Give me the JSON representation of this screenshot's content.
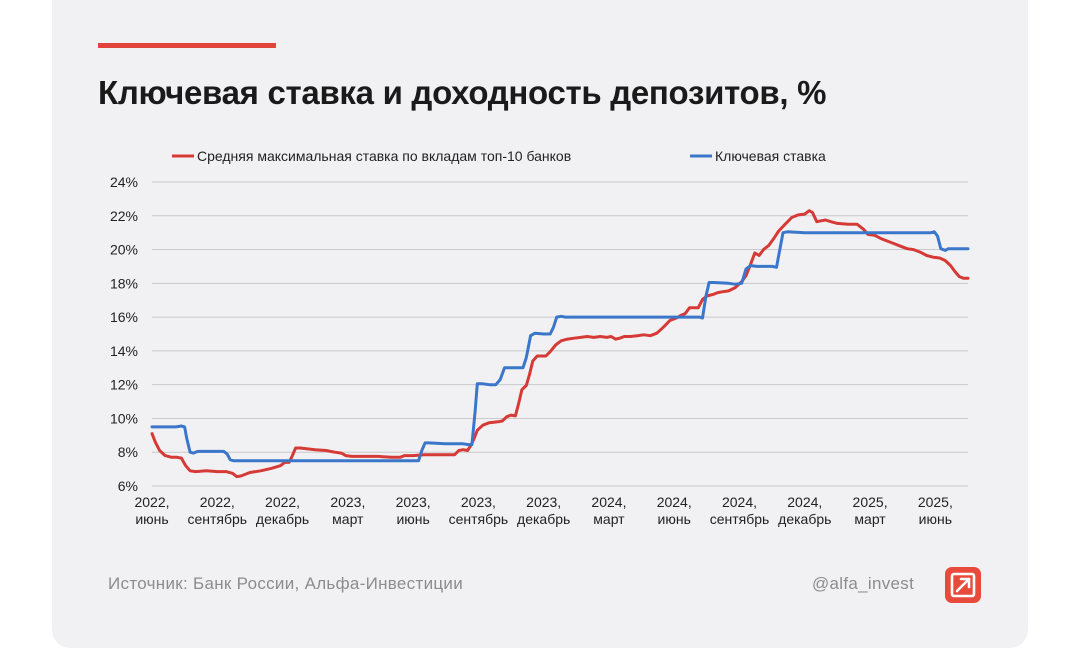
{
  "header": {
    "title": "Ключевая ставка и доходность депозитов, %",
    "accent_color": "#e0463c"
  },
  "footer": {
    "source": "Источник: Банк России, Альфа-Инвестиции",
    "handle": "@alfa_invest",
    "logo_icon": "arrow-up-right-icon"
  },
  "chart_data": {
    "type": "line",
    "title": "Ключевая ставка и доходность депозитов, %",
    "xlabel": "",
    "ylabel": "",
    "ylim": [
      6,
      24
    ],
    "yticks": [
      6,
      8,
      10,
      12,
      14,
      16,
      18,
      20,
      22,
      24
    ],
    "ytick_labels": [
      "6%",
      "8%",
      "10%",
      "12%",
      "14%",
      "16%",
      "18%",
      "20%",
      "22%",
      "24%"
    ],
    "xlim": [
      0,
      37
    ],
    "xticks": [
      {
        "x": 0,
        "line1": "2022,",
        "line2": "июнь"
      },
      {
        "x": 3,
        "line1": "2022,",
        "line2": "сентябрь"
      },
      {
        "x": 6,
        "line1": "2022,",
        "line2": "декабрь"
      },
      {
        "x": 9,
        "line1": "2023,",
        "line2": "март"
      },
      {
        "x": 12,
        "line1": "2023,",
        "line2": "июнь"
      },
      {
        "x": 15,
        "line1": "2023,",
        "line2": "сентябрь"
      },
      {
        "x": 18,
        "line1": "2023,",
        "line2": "декабрь"
      },
      {
        "x": 21,
        "line1": "2024,",
        "line2": "март"
      },
      {
        "x": 24,
        "line1": "2024,",
        "line2": "июнь"
      },
      {
        "x": 27,
        "line1": "2024,",
        "line2": "сентябрь"
      },
      {
        "x": 30,
        "line1": "2024,",
        "line2": "декабрь"
      },
      {
        "x": 33,
        "line1": "2025,",
        "line2": "март"
      },
      {
        "x": 36,
        "line1": "2025,",
        "line2": "июнь"
      }
    ],
    "grid": true,
    "legend_position": "top",
    "series": [
      {
        "name": "Средняя максимальная ставка по вкладам топ-10 банков",
        "color": "#d63a36",
        "points": [
          [
            0,
            9.1
          ],
          [
            0.15,
            8.6
          ],
          [
            0.35,
            8.1
          ],
          [
            0.6,
            7.8
          ],
          [
            0.9,
            7.7
          ],
          [
            1.15,
            7.7
          ],
          [
            1.35,
            7.65
          ],
          [
            1.55,
            7.2
          ],
          [
            1.75,
            6.9
          ],
          [
            2.0,
            6.85
          ],
          [
            2.5,
            6.9
          ],
          [
            3.0,
            6.85
          ],
          [
            3.4,
            6.85
          ],
          [
            3.7,
            6.75
          ],
          [
            3.9,
            6.55
          ],
          [
            4.1,
            6.6
          ],
          [
            4.5,
            6.8
          ],
          [
            5.0,
            6.9
          ],
          [
            5.5,
            7.05
          ],
          [
            5.9,
            7.2
          ],
          [
            6.1,
            7.4
          ],
          [
            6.3,
            7.4
          ],
          [
            6.45,
            7.8
          ],
          [
            6.6,
            8.25
          ],
          [
            6.8,
            8.25
          ],
          [
            7.1,
            8.2
          ],
          [
            7.5,
            8.15
          ],
          [
            8.0,
            8.1
          ],
          [
            8.4,
            8.0
          ],
          [
            8.7,
            7.95
          ],
          [
            8.9,
            7.8
          ],
          [
            9.2,
            7.75
          ],
          [
            9.8,
            7.75
          ],
          [
            10.4,
            7.75
          ],
          [
            11.0,
            7.7
          ],
          [
            11.4,
            7.7
          ],
          [
            11.6,
            7.8
          ],
          [
            12.0,
            7.8
          ],
          [
            12.5,
            7.85
          ],
          [
            13.0,
            7.85
          ],
          [
            13.6,
            7.85
          ],
          [
            13.9,
            7.85
          ],
          [
            14.1,
            8.1
          ],
          [
            14.3,
            8.15
          ],
          [
            14.5,
            8.1
          ],
          [
            14.65,
            8.4
          ],
          [
            14.8,
            8.8
          ],
          [
            14.95,
            9.3
          ],
          [
            15.2,
            9.6
          ],
          [
            15.5,
            9.75
          ],
          [
            15.9,
            9.8
          ],
          [
            16.1,
            9.85
          ],
          [
            16.3,
            10.1
          ],
          [
            16.5,
            10.2
          ],
          [
            16.7,
            10.15
          ],
          [
            16.85,
            10.9
          ],
          [
            17.0,
            11.7
          ],
          [
            17.2,
            11.95
          ],
          [
            17.35,
            12.6
          ],
          [
            17.5,
            13.4
          ],
          [
            17.7,
            13.7
          ],
          [
            17.9,
            13.7
          ],
          [
            18.1,
            13.7
          ],
          [
            18.3,
            13.95
          ],
          [
            18.55,
            14.35
          ],
          [
            18.8,
            14.6
          ],
          [
            19.1,
            14.7
          ],
          [
            19.4,
            14.75
          ],
          [
            19.7,
            14.8
          ],
          [
            20.0,
            14.85
          ],
          [
            20.3,
            14.8
          ],
          [
            20.6,
            14.85
          ],
          [
            20.9,
            14.8
          ],
          [
            21.1,
            14.85
          ],
          [
            21.3,
            14.7
          ],
          [
            21.5,
            14.75
          ],
          [
            21.7,
            14.85
          ],
          [
            22.0,
            14.85
          ],
          [
            22.3,
            14.9
          ],
          [
            22.6,
            14.95
          ],
          [
            22.9,
            14.9
          ],
          [
            23.2,
            15.05
          ],
          [
            23.5,
            15.4
          ],
          [
            23.8,
            15.8
          ],
          [
            24.1,
            15.95
          ],
          [
            24.3,
            16.1
          ],
          [
            24.5,
            16.2
          ],
          [
            24.7,
            16.55
          ],
          [
            24.9,
            16.55
          ],
          [
            25.1,
            16.55
          ],
          [
            25.3,
            17.05
          ],
          [
            25.5,
            17.25
          ],
          [
            25.8,
            17.35
          ],
          [
            26.0,
            17.45
          ],
          [
            26.2,
            17.5
          ],
          [
            26.5,
            17.55
          ],
          [
            26.8,
            17.75
          ],
          [
            27.1,
            18.1
          ],
          [
            27.3,
            18.45
          ],
          [
            27.5,
            19.1
          ],
          [
            27.7,
            19.8
          ],
          [
            27.9,
            19.65
          ],
          [
            28.1,
            20.0
          ],
          [
            28.35,
            20.25
          ],
          [
            28.6,
            20.7
          ],
          [
            28.8,
            21.1
          ],
          [
            29.1,
            21.5
          ],
          [
            29.4,
            21.9
          ],
          [
            29.7,
            22.05
          ],
          [
            30.0,
            22.1
          ],
          [
            30.2,
            22.3
          ],
          [
            30.35,
            22.2
          ],
          [
            30.55,
            21.65
          ],
          [
            30.75,
            21.7
          ],
          [
            30.95,
            21.75
          ],
          [
            31.2,
            21.65
          ],
          [
            31.5,
            21.55
          ],
          [
            32.0,
            21.5
          ],
          [
            32.4,
            21.5
          ],
          [
            32.7,
            21.2
          ],
          [
            32.9,
            20.9
          ],
          [
            33.2,
            20.85
          ],
          [
            33.5,
            20.65
          ],
          [
            33.8,
            20.5
          ],
          [
            34.1,
            20.35
          ],
          [
            34.4,
            20.2
          ],
          [
            34.7,
            20.05
          ],
          [
            35.0,
            20.0
          ],
          [
            35.3,
            19.85
          ],
          [
            35.6,
            19.65
          ],
          [
            35.9,
            19.55
          ],
          [
            36.2,
            19.5
          ],
          [
            36.45,
            19.35
          ],
          [
            36.7,
            19.05
          ],
          [
            36.9,
            18.7
          ],
          [
            37.1,
            18.4
          ],
          [
            37.3,
            18.3
          ],
          [
            37.5,
            18.3
          ]
        ]
      },
      {
        "name": "Ключевая ставка",
        "color": "#3a76c9",
        "points": [
          [
            0,
            9.5
          ],
          [
            0.6,
            9.5
          ],
          [
            1.1,
            9.5
          ],
          [
            1.35,
            9.55
          ],
          [
            1.5,
            9.5
          ],
          [
            1.6,
            8.8
          ],
          [
            1.75,
            8.0
          ],
          [
            1.9,
            7.95
          ],
          [
            2.1,
            8.05
          ],
          [
            3.0,
            8.05
          ],
          [
            3.3,
            8.05
          ],
          [
            3.45,
            7.9
          ],
          [
            3.6,
            7.55
          ],
          [
            3.75,
            7.5
          ],
          [
            5.0,
            7.5
          ],
          [
            6.5,
            7.5
          ],
          [
            8.0,
            7.5
          ],
          [
            9.5,
            7.5
          ],
          [
            11.0,
            7.5
          ],
          [
            12.1,
            7.5
          ],
          [
            12.25,
            7.5
          ],
          [
            12.4,
            8.1
          ],
          [
            12.55,
            8.55
          ],
          [
            12.7,
            8.55
          ],
          [
            13.5,
            8.5
          ],
          [
            14.3,
            8.5
          ],
          [
            14.55,
            8.45
          ],
          [
            14.7,
            8.45
          ],
          [
            14.85,
            10.4
          ],
          [
            14.95,
            12.05
          ],
          [
            15.2,
            12.05
          ],
          [
            15.5,
            12.0
          ],
          [
            15.8,
            12.0
          ],
          [
            16.0,
            12.3
          ],
          [
            16.2,
            13.0
          ],
          [
            16.5,
            13.0
          ],
          [
            16.8,
            13.0
          ],
          [
            17.05,
            13.0
          ],
          [
            17.2,
            13.6
          ],
          [
            17.4,
            14.9
          ],
          [
            17.6,
            15.05
          ],
          [
            18.0,
            15.0
          ],
          [
            18.3,
            15.0
          ],
          [
            18.45,
            15.4
          ],
          [
            18.6,
            16.0
          ],
          [
            18.8,
            16.05
          ],
          [
            19.0,
            16.0
          ],
          [
            20.5,
            16.0
          ],
          [
            22.0,
            16.0
          ],
          [
            23.5,
            16.0
          ],
          [
            25.0,
            16.0
          ],
          [
            25.15,
            16.0
          ],
          [
            25.3,
            15.95
          ],
          [
            25.45,
            17.2
          ],
          [
            25.6,
            18.05
          ],
          [
            25.8,
            18.05
          ],
          [
            26.5,
            18.0
          ],
          [
            26.8,
            17.95
          ],
          [
            27.1,
            18.0
          ],
          [
            27.3,
            18.85
          ],
          [
            27.5,
            19.05
          ],
          [
            27.8,
            19.0
          ],
          [
            28.5,
            19.0
          ],
          [
            28.7,
            18.95
          ],
          [
            28.85,
            20.0
          ],
          [
            29.0,
            21.0
          ],
          [
            29.2,
            21.05
          ],
          [
            30.0,
            21.0
          ],
          [
            31.5,
            21.0
          ],
          [
            33.0,
            21.0
          ],
          [
            34.5,
            21.0
          ],
          [
            35.8,
            21.0
          ],
          [
            35.95,
            21.05
          ],
          [
            36.1,
            20.8
          ],
          [
            36.25,
            20.05
          ],
          [
            36.45,
            19.95
          ],
          [
            36.6,
            20.05
          ],
          [
            37.0,
            20.05
          ],
          [
            37.5,
            20.05
          ]
        ]
      }
    ]
  }
}
